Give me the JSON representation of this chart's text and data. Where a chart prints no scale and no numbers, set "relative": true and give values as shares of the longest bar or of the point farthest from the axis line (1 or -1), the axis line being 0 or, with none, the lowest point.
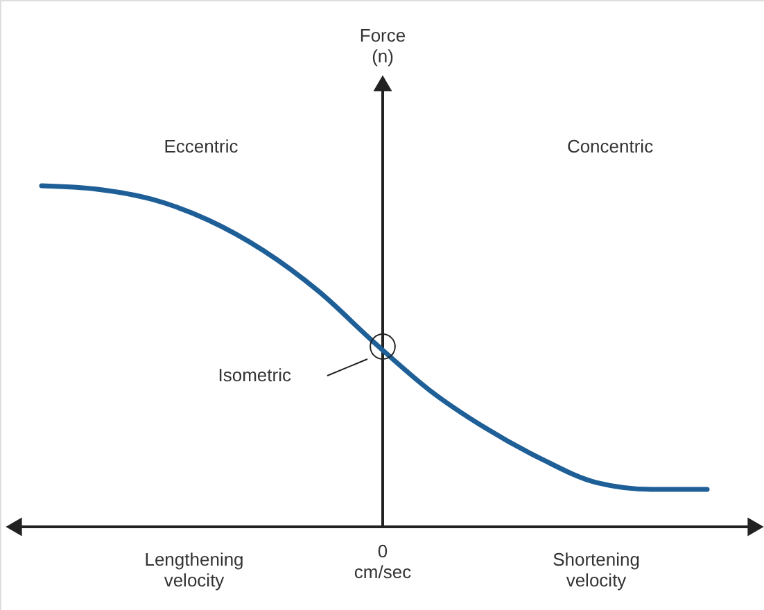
{
  "chart_data": {
    "type": "line",
    "relative": true,
    "categories": [
      null,
      null,
      null,
      null,
      null,
      null,
      null,
      null,
      null,
      null,
      null,
      null,
      null
    ],
    "series": [
      {
        "color": "#1f5f97",
        "values": [
          1,
          0.99,
          0.96,
          0.9,
          0.81,
          0.69,
          0.54,
          0.4,
          0.29,
          0.2,
          0.13,
          0.11,
          0.11
        ]
      }
    ],
    "annotations": [
      "Force\n(n)",
      "Eccentric",
      "Concentric",
      "Isometric",
      "Lengthening\nvelocity",
      "0\ncm/sec",
      "Shortening\nvelocity"
    ]
  }
}
